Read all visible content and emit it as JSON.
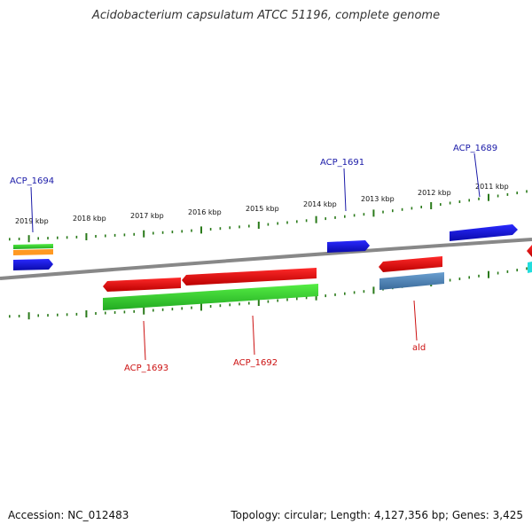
{
  "title": "Acidobacterium capsulatum ATCC 51196, complete genome",
  "footer": {
    "accession": "Accession: NC_012483",
    "summary": "Topology: circular; Length: 4,127,356 bp; Genes: 3,425"
  },
  "scale_labels": [
    "2019 kbp",
    "2018 kbp",
    "2017 kbp",
    "2016 kbp",
    "2015 kbp",
    "2014 kbp",
    "2013 kbp",
    "2012 kbp",
    "2011 kbp"
  ],
  "gene_labels": {
    "acp1694": "ACP_1694",
    "acp1691": "ACP_1691",
    "acp1689": "ACP_1689",
    "acp1693": "ACP_1693",
    "acp1692": "ACP_1692",
    "ald": "ald"
  },
  "colors": {
    "blue_label": "#1a1aa8",
    "red_label": "#cc1111",
    "backbone": "#888888",
    "ticks": "#2a7a1a",
    "blue_gene": "#1a1aee",
    "red_gene": "#ee1111",
    "green_gene": "#33cc33",
    "orange_gene": "#ff9922",
    "steel_gene": "#4a7fb5",
    "cyan_gene": "#22dddd"
  }
}
